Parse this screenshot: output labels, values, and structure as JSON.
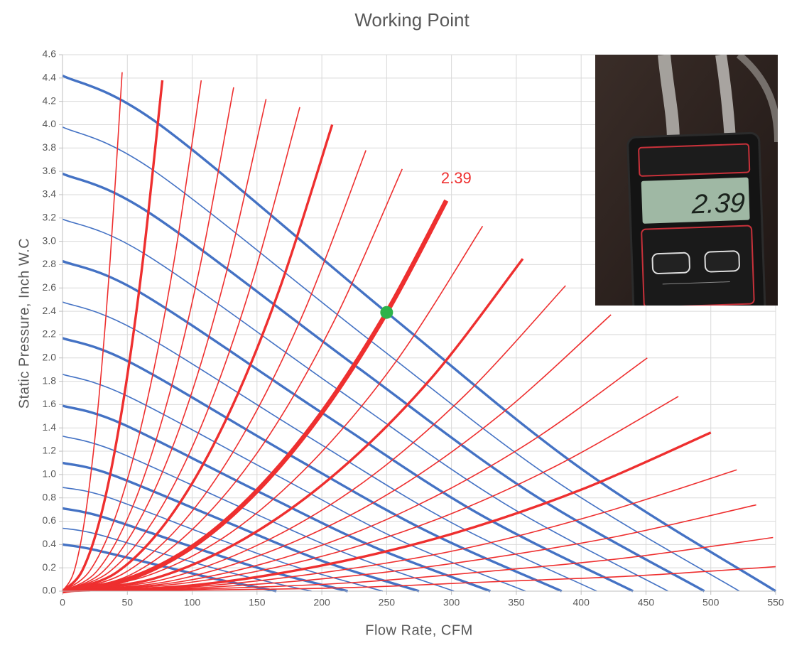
{
  "chart_data": {
    "type": "line",
    "title": "Working Point",
    "x_label": "Flow Rate, CFM",
    "y_label": "Static Pressure, Inch W.C",
    "xlim": [
      0,
      550
    ],
    "ylim": [
      0,
      4.6
    ],
    "xticks": [
      0,
      50,
      100,
      150,
      200,
      250,
      300,
      350,
      400,
      450,
      500,
      550
    ],
    "yticks": [
      {
        "value": 0,
        "label": "0.0"
      },
      0.2,
      0.4,
      0.6,
      0.8,
      {
        "value": 1,
        "label": "1.0"
      },
      1.2,
      1.4,
      1.6,
      1.8,
      {
        "value": 2,
        "label": "2.0"
      },
      2.2,
      2.4,
      2.6,
      2.8,
      {
        "value": 3,
        "label": "3.0"
      },
      3.2,
      3.4,
      3.6,
      3.8,
      {
        "value": 4,
        "label": "4.0"
      },
      4.2,
      4.4,
      4.6
    ],
    "grid": true,
    "working_point": {
      "x": 250,
      "y": 2.39,
      "color": "#2db34a"
    },
    "series": [
      {
        "color": "#4472c4",
        "style": "thick",
        "x": [
          0,
          75,
          250,
          400,
          550
        ],
        "values": [
          4.42,
          4.0,
          2.39,
          1.05,
          0
        ]
      },
      {
        "color": "#4472c4",
        "style": "thin",
        "x": [
          0,
          71.2,
          237.3,
          379.6,
          522
        ],
        "values": [
          3.98,
          3.6,
          2.15,
          0.95,
          0
        ]
      },
      {
        "color": "#4472c4",
        "style": "thick",
        "x": [
          0,
          67.5,
          225,
          360,
          495
        ],
        "values": [
          3.58,
          3.24,
          1.94,
          0.85,
          0
        ]
      },
      {
        "color": "#4472c4",
        "style": "thin",
        "x": [
          0,
          63.7,
          212.3,
          339.6,
          467
        ],
        "values": [
          3.19,
          2.89,
          1.73,
          0.76,
          0
        ]
      },
      {
        "color": "#4472c4",
        "style": "thick",
        "x": [
          0,
          60,
          200,
          320,
          440
        ],
        "values": [
          2.83,
          2.56,
          1.53,
          0.67,
          0
        ]
      },
      {
        "color": "#4472c4",
        "style": "thin",
        "x": [
          0,
          56.2,
          187.3,
          299.6,
          412
        ],
        "values": [
          2.48,
          2.24,
          1.34,
          0.59,
          0
        ]
      },
      {
        "color": "#4472c4",
        "style": "thick",
        "x": [
          0,
          52.5,
          175,
          280,
          385
        ],
        "values": [
          2.17,
          1.96,
          1.17,
          0.52,
          0
        ]
      },
      {
        "color": "#4472c4",
        "style": "thin",
        "x": [
          0,
          48.7,
          162.3,
          259.6,
          357
        ],
        "values": [
          1.86,
          1.68,
          1.01,
          0.44,
          0
        ]
      },
      {
        "color": "#4472c4",
        "style": "thick",
        "x": [
          0,
          45,
          150,
          240,
          330
        ],
        "values": [
          1.59,
          1.44,
          0.86,
          0.38,
          0
        ]
      },
      {
        "color": "#4472c4",
        "style": "thin",
        "x": [
          0,
          41.2,
          137.3,
          219.6,
          302
        ],
        "values": [
          1.33,
          1.2,
          0.72,
          0.32,
          0
        ]
      },
      {
        "color": "#4472c4",
        "style": "thick",
        "x": [
          0,
          37.5,
          125,
          200,
          275
        ],
        "values": [
          1.1,
          1.0,
          0.6,
          0.26,
          0
        ]
      },
      {
        "color": "#4472c4",
        "style": "thin",
        "x": [
          0,
          33.7,
          112.3,
          179.6,
          247
        ],
        "values": [
          0.89,
          0.81,
          0.48,
          0.21,
          0
        ]
      },
      {
        "color": "#4472c4",
        "style": "thick",
        "x": [
          0,
          30,
          100,
          160,
          220
        ],
        "values": [
          0.71,
          0.64,
          0.38,
          0.17,
          0
        ]
      },
      {
        "color": "#4472c4",
        "style": "thin",
        "x": [
          0,
          26.2,
          87.3,
          139.6,
          192
        ],
        "values": [
          0.54,
          0.49,
          0.29,
          0.13,
          0
        ]
      },
      {
        "color": "#4472c4",
        "style": "thick",
        "x": [
          0,
          22.5,
          75,
          120,
          165
        ],
        "values": [
          0.4,
          0.36,
          0.22,
          0.1,
          0
        ]
      },
      {
        "color": "#ee2f2f",
        "style": "thin",
        "x": [
          0,
          9.2,
          18.4,
          27.6,
          36.8,
          46
        ],
        "values": [
          0,
          0.18,
          0.71,
          1.6,
          2.85,
          4.45
        ]
      },
      {
        "color": "#ee2f2f",
        "style": "thick",
        "x": [
          0,
          15.4,
          30.8,
          46.2,
          61.6,
          77
        ],
        "values": [
          0,
          0.18,
          0.7,
          1.58,
          2.8,
          4.38
        ]
      },
      {
        "color": "#ee2f2f",
        "style": "thin",
        "x": [
          0,
          21.4,
          42.8,
          64.2,
          85.6,
          107
        ],
        "values": [
          0,
          0.18,
          0.7,
          1.58,
          2.8,
          4.38
        ]
      },
      {
        "color": "#ee2f2f",
        "style": "thin",
        "x": [
          0,
          26.4,
          52.8,
          79.2,
          105.6,
          132
        ],
        "values": [
          0,
          0.17,
          0.69,
          1.56,
          2.76,
          4.32
        ]
      },
      {
        "color": "#ee2f2f",
        "style": "thin",
        "x": [
          0,
          31.4,
          62.8,
          94.2,
          125.6,
          157
        ],
        "values": [
          0,
          0.17,
          0.68,
          1.52,
          2.7,
          4.22
        ]
      },
      {
        "color": "#ee2f2f",
        "style": "thin",
        "x": [
          0,
          36.6,
          73.2,
          109.8,
          146.4,
          183
        ],
        "values": [
          0,
          0.17,
          0.66,
          1.49,
          2.66,
          4.15
        ]
      },
      {
        "color": "#ee2f2f",
        "style": "thick",
        "x": [
          0,
          41.6,
          83.2,
          124.8,
          166.4,
          208
        ],
        "values": [
          0,
          0.16,
          0.64,
          1.44,
          2.56,
          4.0
        ]
      },
      {
        "color": "#ee2f2f",
        "style": "thin",
        "x": [
          0,
          46.8,
          93.6,
          140.4,
          187.2,
          234
        ],
        "values": [
          0,
          0.15,
          0.6,
          1.36,
          2.42,
          3.78
        ]
      },
      {
        "color": "#ee2f2f",
        "style": "thin",
        "x": [
          0,
          52.4,
          104.8,
          157.2,
          209.6,
          262
        ],
        "values": [
          0,
          0.14,
          0.58,
          1.3,
          2.32,
          3.62
        ]
      },
      {
        "color": "#ee2f2f",
        "style": "bold",
        "x": [
          0,
          50,
          100,
          150,
          200,
          250,
          296
        ],
        "values": [
          0,
          0.1,
          0.38,
          0.86,
          1.53,
          2.39,
          3.35
        ]
      },
      {
        "color": "#ee2f2f",
        "style": "thin",
        "x": [
          0,
          64.8,
          129.6,
          194.4,
          259.2,
          324
        ],
        "values": [
          0,
          0.13,
          0.5,
          1.13,
          2.0,
          3.13
        ]
      },
      {
        "color": "#ee2f2f",
        "style": "thick",
        "x": [
          0,
          71,
          142,
          213,
          284,
          355
        ],
        "values": [
          0,
          0.11,
          0.46,
          1.03,
          1.82,
          2.85
        ]
      },
      {
        "color": "#ee2f2f",
        "style": "thin",
        "x": [
          0,
          77.6,
          155.2,
          232.8,
          310.4,
          388
        ],
        "values": [
          0,
          0.1,
          0.42,
          0.94,
          1.68,
          2.62
        ]
      },
      {
        "color": "#ee2f2f",
        "style": "thin",
        "x": [
          0,
          84.6,
          169.2,
          253.8,
          338.4,
          423
        ],
        "values": [
          0,
          0.09,
          0.38,
          0.85,
          1.52,
          2.37
        ]
      },
      {
        "color": "#ee2f2f",
        "style": "thin",
        "x": [
          0,
          90.2,
          180.4,
          270.6,
          360.8,
          451
        ],
        "values": [
          0,
          0.08,
          0.32,
          0.72,
          1.28,
          2.0
        ]
      },
      {
        "color": "#ee2f2f",
        "style": "thin",
        "x": [
          0,
          95,
          190,
          285,
          380,
          475
        ],
        "values": [
          0,
          0.07,
          0.27,
          0.6,
          1.07,
          1.67
        ]
      },
      {
        "color": "#ee2f2f",
        "style": "thick",
        "x": [
          0,
          100,
          200,
          300,
          400,
          500
        ],
        "values": [
          0,
          0.05,
          0.22,
          0.49,
          0.87,
          1.36
        ]
      },
      {
        "color": "#ee2f2f",
        "style": "thin",
        "x": [
          0,
          104,
          208,
          312,
          416,
          520
        ],
        "values": [
          0,
          0.04,
          0.17,
          0.37,
          0.67,
          1.04
        ]
      },
      {
        "color": "#ee2f2f",
        "style": "thin",
        "x": [
          0,
          107,
          214,
          321,
          428,
          535
        ],
        "values": [
          0,
          0.03,
          0.12,
          0.27,
          0.47,
          0.74
        ]
      },
      {
        "color": "#ee2f2f",
        "style": "thin",
        "x": [
          0,
          109.6,
          219.2,
          328.8,
          438.4,
          548
        ],
        "values": [
          0,
          0.02,
          0.07,
          0.17,
          0.29,
          0.46
        ]
      },
      {
        "color": "#ee2f2f",
        "style": "thin",
        "x": [
          0,
          110,
          220,
          330,
          440,
          550
        ],
        "values": [
          0,
          0.01,
          0.03,
          0.08,
          0.13,
          0.21
        ]
      }
    ]
  }
}
